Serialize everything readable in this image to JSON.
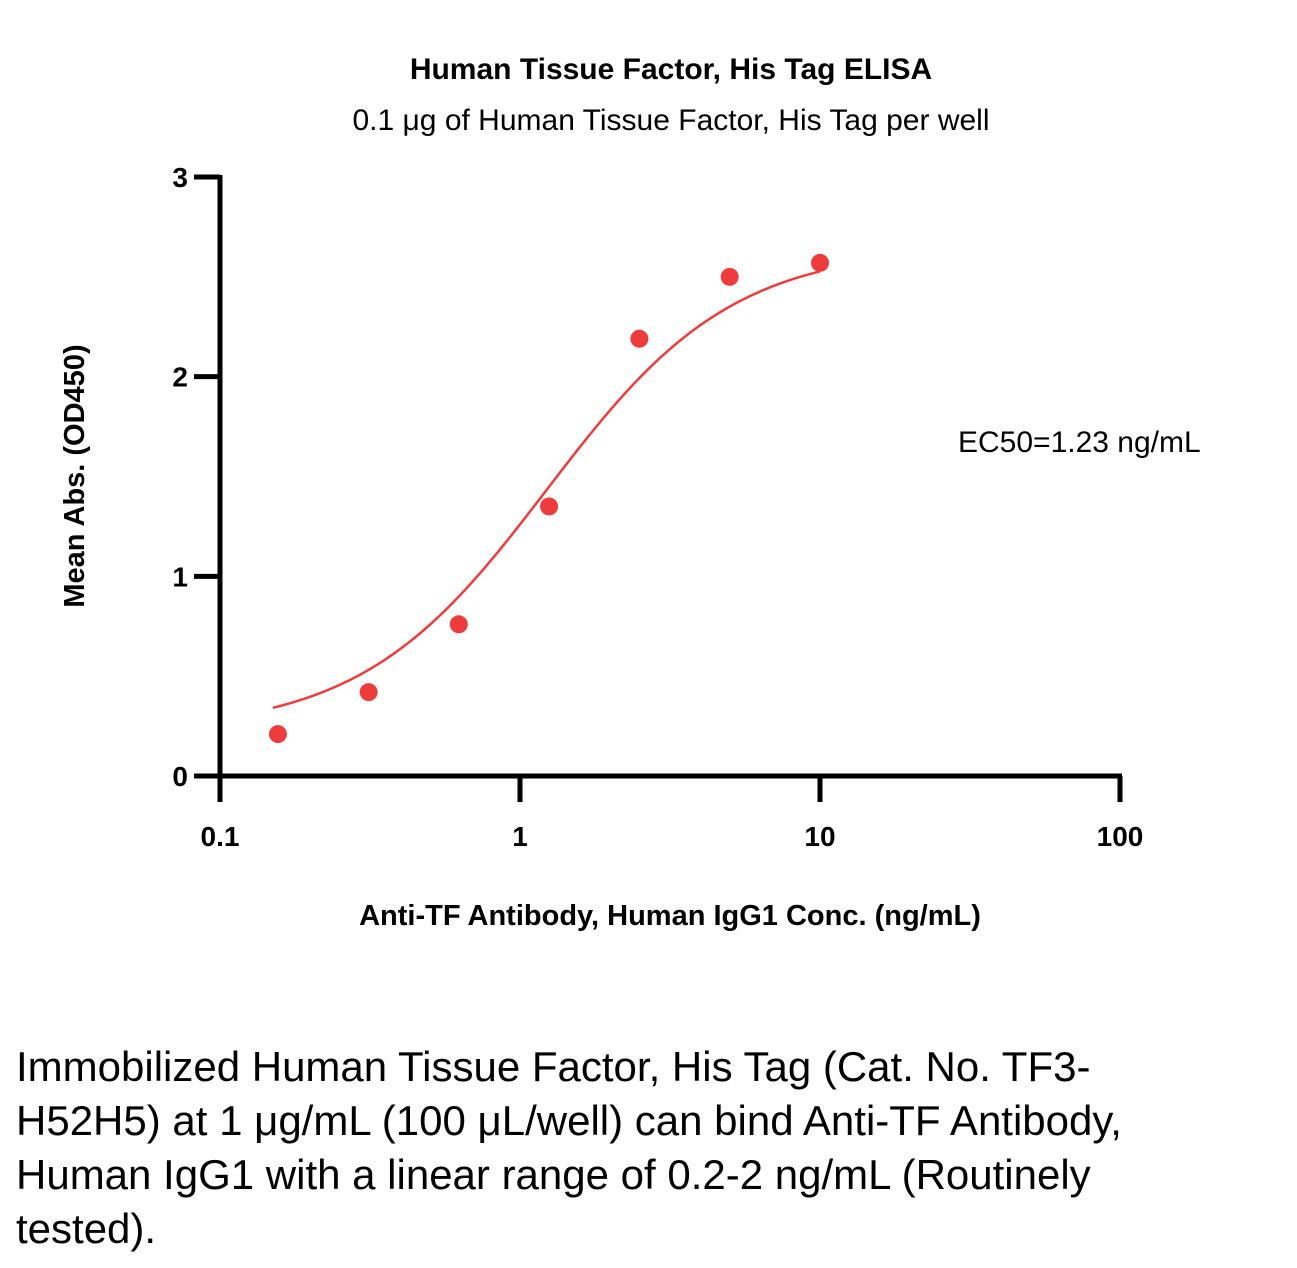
{
  "chart_data": {
    "type": "scatter",
    "title": "Human Tissue Factor, His Tag ELISA",
    "subtitle": "0.1 μg of Human Tissue Factor, His Tag per well",
    "xlabel": "Anti-TF Antibody, Human IgG1 Conc. (ng/mL)",
    "ylabel": "Mean Abs. (OD450)",
    "x_scale": "log",
    "xlim": [
      0.1,
      100
    ],
    "ylim": [
      0,
      3
    ],
    "x_ticks": [
      "0.1",
      "1",
      "10",
      "100"
    ],
    "y_ticks": [
      "0",
      "1",
      "2",
      "3"
    ],
    "grid": false,
    "series": [
      {
        "x": [
          0.156,
          0.313,
          0.625,
          1.25,
          2.5,
          5,
          10
        ],
        "y": [
          0.21,
          0.42,
          0.76,
          1.35,
          2.19,
          2.5,
          2.57
        ],
        "color": "#ee3c3c"
      }
    ],
    "fit_curve": {
      "bottom": 0.22,
      "top": 2.65,
      "ec50": 1.23,
      "hill": 1.4,
      "x_range": [
        0.15,
        10
      ],
      "color": "#ee3c3c"
    },
    "annotation": "EC50=1.23 ng/mL"
  },
  "caption": "Immobilized Human Tissue Factor, His Tag (Cat. No. TF3-H52H5) at 1 μg/mL (100 μL/well) can bind Anti-TF Antibody, Human IgG1 with a linear range of 0.2-2 ng/mL (Routinely tested)."
}
